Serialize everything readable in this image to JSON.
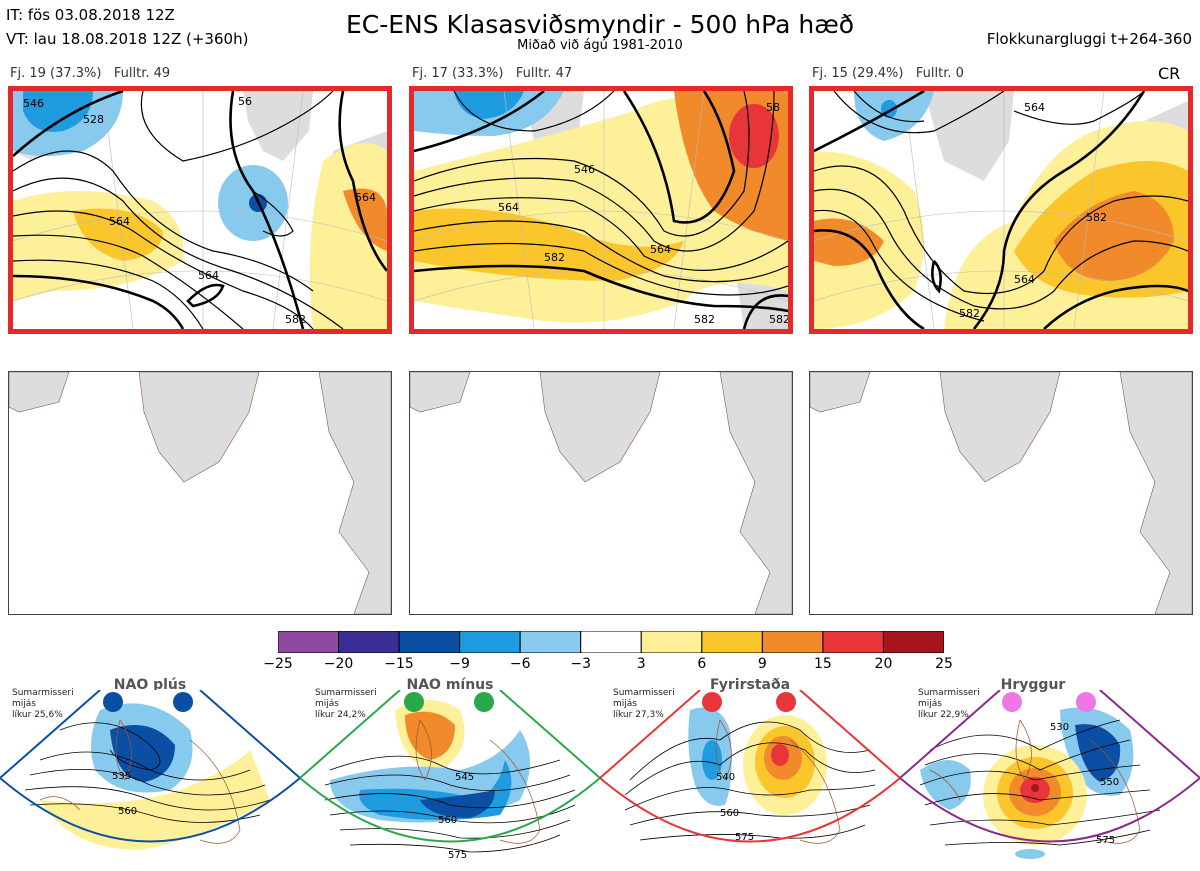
{
  "header": {
    "it": "IT: fös 03.08.2018 12Z",
    "vt": "VT: lau 18.08.2018 12Z  (+360h)",
    "title": "EC-ENS Klasasviðsmyndir - 500 hPa hæð",
    "subtitle": "Miðað við ágú 1981-2010",
    "window": "Flokkunargluggi t+264-360",
    "cr": "CR"
  },
  "clusters": [
    {
      "fj": "Fj. 19 (37.3%)",
      "fulltr": "Fulltr. 49",
      "contours": [
        "546",
        "528",
        "56",
        "564",
        "564",
        "564",
        "582"
      ]
    },
    {
      "fj": "Fj. 17 (33.3%)",
      "fulltr": "Fulltr. 47",
      "contours": [
        "546",
        "564",
        "564",
        "582",
        "582",
        "582",
        "58"
      ]
    },
    {
      "fj": "Fj. 15 (29.4%)",
      "fulltr": "Fulltr. 0",
      "contours": [
        "564",
        "564",
        "582",
        "582"
      ]
    }
  ],
  "colorbar": {
    "ticks": [
      "−25",
      "−20",
      "−15",
      "−9",
      "−6",
      "−3",
      "3",
      "6",
      "9",
      "15",
      "20",
      "25"
    ],
    "colors": [
      "#8e4aa0",
      "#3b2d96",
      "#0a4fa3",
      "#1f9be0",
      "#88c9ee",
      "#ffffff",
      "#fdf099",
      "#fbc62c",
      "#f08a2a",
      "#e8353a",
      "#a8141e"
    ]
  },
  "regimes": [
    {
      "name": "NAO plús",
      "info": [
        "Sumarmisseri",
        "mijás",
        "líkur 25,6%"
      ],
      "dot": "#0a4fa3",
      "frame": "#0a4fa3",
      "contours": [
        "535",
        "560"
      ]
    },
    {
      "name": "NAO mínus",
      "info": [
        "Sumarmisseri",
        "mijás",
        "líkur 24,2%"
      ],
      "dot": "#2aa84a",
      "frame": "#2aa84a",
      "contours": [
        "545",
        "560",
        "575"
      ]
    },
    {
      "name": "Fyrirstaða",
      "info": [
        "Sumarmisseri",
        "mijás",
        "líkur 27,3%"
      ],
      "dot": "#e8353a",
      "frame": "#e8353a",
      "contours": [
        "540",
        "560",
        "575"
      ]
    },
    {
      "name": "Hryggur",
      "info": [
        "Sumarmisseri",
        "mijás",
        "líkur 22,9%"
      ],
      "dot": "#ee77e6",
      "frame": "#8a2a8a",
      "contours": [
        "530",
        "550",
        "575"
      ]
    }
  ]
}
